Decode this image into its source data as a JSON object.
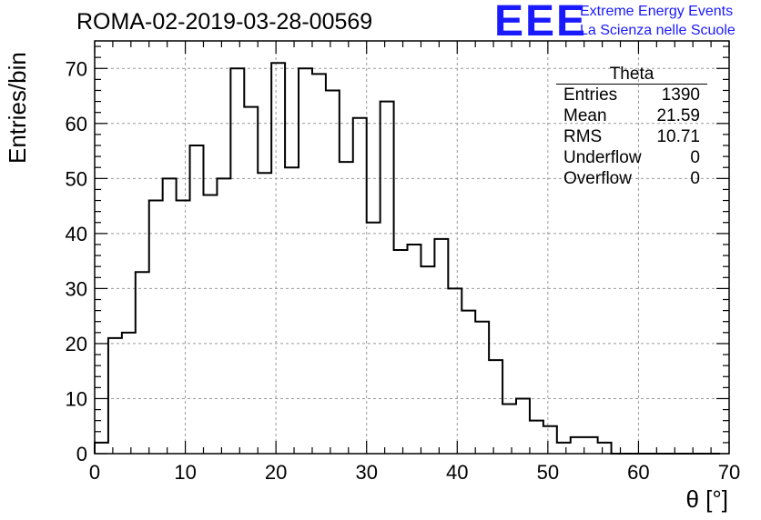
{
  "title": "ROMA-02-2019-03-28-00569",
  "logo": {
    "mark": "EEE",
    "line1": "Extreme Energy Events",
    "line2": "La Scienza nelle Scuole",
    "color": "#1a1aff"
  },
  "stats": {
    "name": "Theta",
    "rows": [
      {
        "label": "Entries",
        "value": "1390"
      },
      {
        "label": "Mean",
        "value": "21.59"
      },
      {
        "label": "RMS",
        "value": "10.71"
      },
      {
        "label": "Underflow",
        "value": "0"
      },
      {
        "label": "Overflow",
        "value": "0"
      }
    ]
  },
  "chart_data": {
    "type": "bar",
    "histogram": true,
    "xlabel": "θ [°]",
    "ylabel": "Entries/bin",
    "xlim": [
      0,
      70
    ],
    "ylim": [
      0,
      75
    ],
    "xticks": [
      0,
      10,
      20,
      30,
      40,
      50,
      60,
      70
    ],
    "yticks": [
      0,
      10,
      20,
      30,
      40,
      50,
      60,
      70
    ],
    "grid": true,
    "bin_width": 1.5,
    "bin_start": 0,
    "values": [
      2,
      21,
      22,
      33,
      46,
      50,
      46,
      56,
      47,
      50,
      70,
      63,
      51,
      71,
      52,
      70,
      69,
      66,
      53,
      61,
      42,
      64,
      37,
      38,
      34,
      39,
      30,
      26,
      24,
      17,
      9,
      10,
      6,
      5,
      2,
      3,
      3,
      2,
      0,
      0,
      0,
      0,
      0,
      0,
      0,
      0
    ]
  }
}
